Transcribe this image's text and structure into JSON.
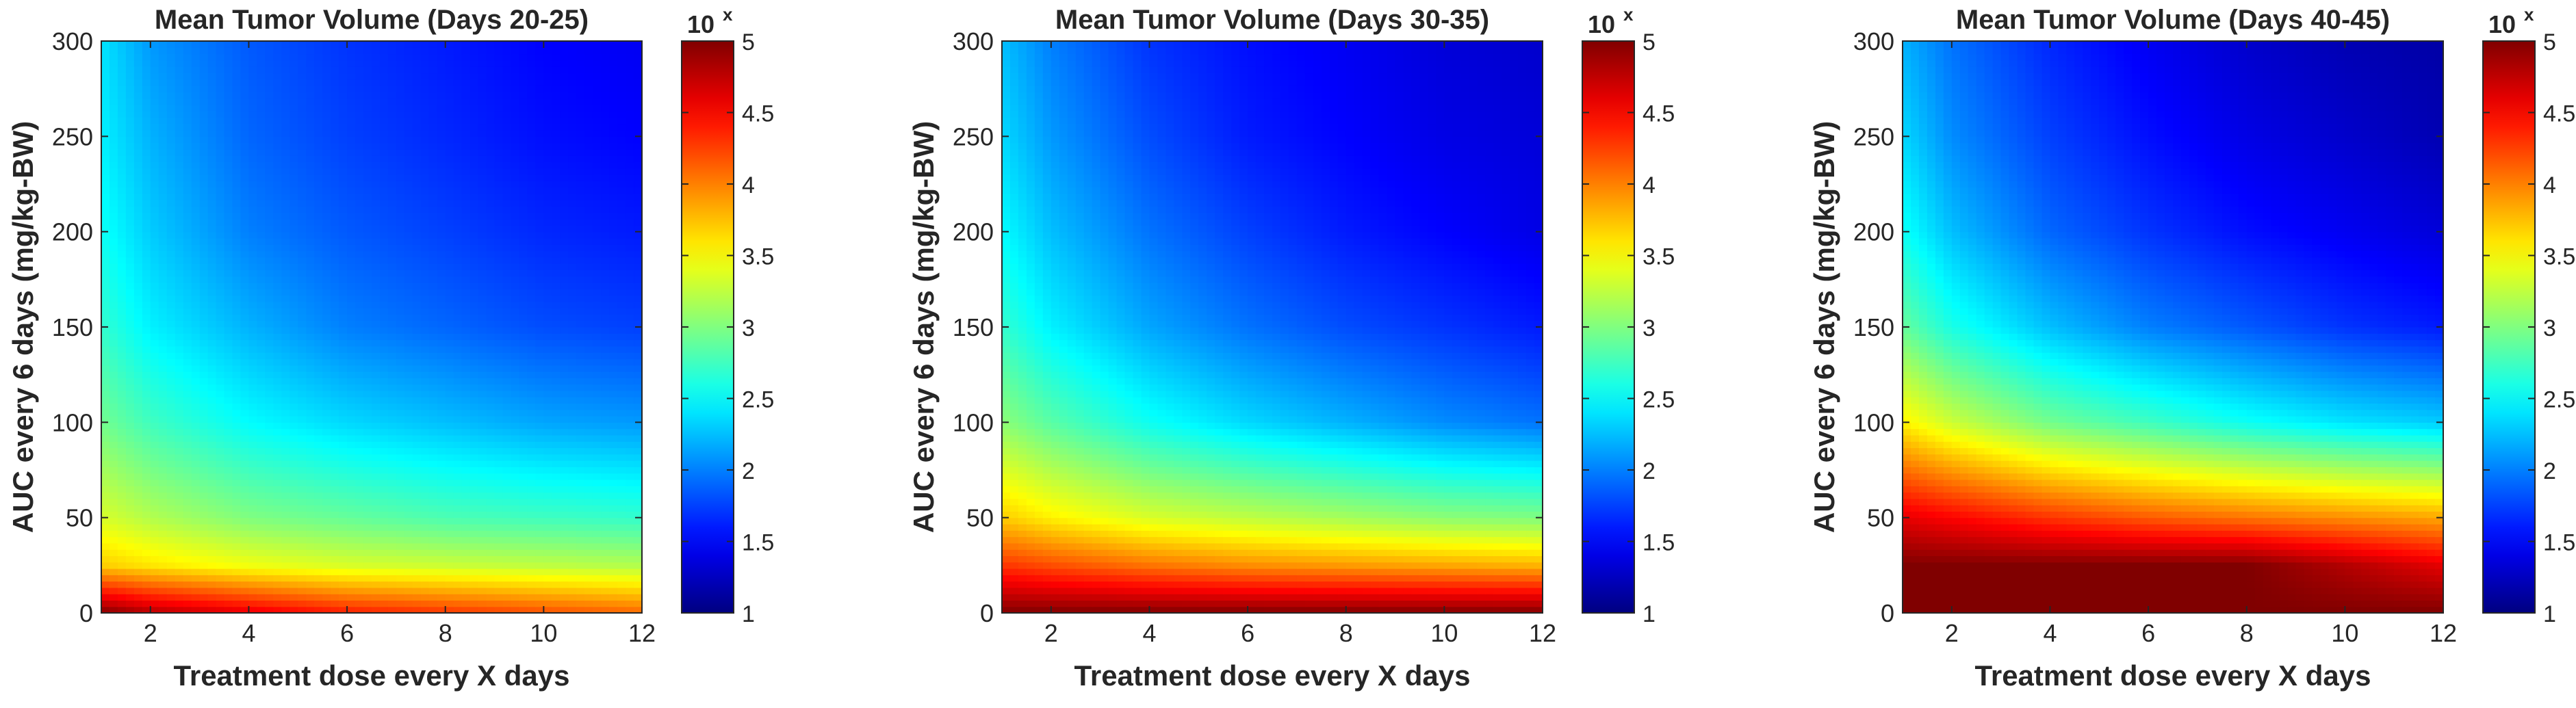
{
  "figure": {
    "panels": 3
  },
  "colormap": {
    "name": "jet"
  },
  "chart_data": [
    {
      "type": "heatmap",
      "title": "Mean Tumor Volume (Days 20-25)",
      "xlabel": "Treatment dose every X days",
      "ylabel": "AUC every 6 days (mg/kg-BW)",
      "xlim": [
        1,
        12
      ],
      "ylim": [
        0,
        300
      ],
      "xticks": [
        2,
        4,
        6,
        8,
        10,
        12
      ],
      "yticks": [
        0,
        50,
        100,
        150,
        200,
        250,
        300
      ],
      "colorbar": {
        "label": "10",
        "label_superscript": "x",
        "range": [
          1,
          5
        ],
        "ticks": [
          1,
          1.5,
          2,
          2.5,
          3,
          3.5,
          4,
          4.5,
          5
        ],
        "tick_labels": [
          "1",
          "1.5",
          "2",
          "2.5",
          "3",
          "3.5",
          "4",
          "4.5",
          "5"
        ]
      },
      "surface_samples": {
        "x": [
          1,
          2,
          4,
          6,
          8,
          10,
          12
        ],
        "y": [
          0,
          25,
          50,
          100,
          150,
          200,
          250,
          300
        ],
        "z_log10": [
          [
            5.0,
            4.8,
            4.6,
            4.4,
            4.3,
            4.2,
            4.1
          ],
          [
            3.7,
            3.6,
            3.45,
            3.35,
            3.3,
            3.25,
            3.2
          ],
          [
            3.35,
            3.2,
            3.0,
            2.9,
            2.8,
            2.75,
            2.7
          ],
          [
            2.95,
            2.75,
            2.5,
            2.35,
            2.25,
            2.15,
            2.1
          ],
          [
            2.7,
            2.45,
            2.2,
            2.0,
            1.9,
            1.8,
            1.75
          ],
          [
            2.55,
            2.3,
            2.0,
            1.85,
            1.75,
            1.65,
            1.6
          ],
          [
            2.45,
            2.2,
            1.9,
            1.75,
            1.65,
            1.55,
            1.5
          ],
          [
            2.4,
            2.1,
            1.85,
            1.7,
            1.6,
            1.5,
            1.45
          ]
        ]
      }
    },
    {
      "type": "heatmap",
      "title": "Mean Tumor Volume (Days 30-35)",
      "xlabel": "Treatment dose every X days",
      "ylabel": "AUC every 6 days (mg/kg-BW)",
      "xlim": [
        1,
        12
      ],
      "ylim": [
        0,
        300
      ],
      "xticks": [
        2,
        4,
        6,
        8,
        10,
        12
      ],
      "yticks": [
        0,
        50,
        100,
        150,
        200,
        250,
        300
      ],
      "colorbar": {
        "label": "10",
        "label_superscript": "x",
        "range": [
          1,
          5
        ],
        "ticks": [
          1,
          1.5,
          2,
          2.5,
          3,
          3.5,
          4,
          4.5,
          5
        ],
        "tick_labels": [
          "1",
          "1.5",
          "2",
          "2.5",
          "3",
          "3.5",
          "4",
          "4.5",
          "5"
        ]
      },
      "surface_samples": {
        "x": [
          1,
          2,
          4,
          6,
          8,
          10,
          12
        ],
        "y": [
          0,
          25,
          50,
          100,
          150,
          200,
          250,
          300
        ],
        "z_log10": [
          [
            5.0,
            5.0,
            5.0,
            5.0,
            5.0,
            5.0,
            5.0
          ],
          [
            4.3,
            4.2,
            4.05,
            3.95,
            3.9,
            3.85,
            3.8
          ],
          [
            3.7,
            3.55,
            3.35,
            3.25,
            3.15,
            3.05,
            3.0
          ],
          [
            3.05,
            2.85,
            2.55,
            2.35,
            2.2,
            2.05,
            1.95
          ],
          [
            2.7,
            2.45,
            2.15,
            1.95,
            1.8,
            1.7,
            1.6
          ],
          [
            2.5,
            2.25,
            1.95,
            1.75,
            1.6,
            1.5,
            1.4
          ],
          [
            2.35,
            2.1,
            1.8,
            1.6,
            1.5,
            1.4,
            1.35
          ],
          [
            2.25,
            2.0,
            1.7,
            1.55,
            1.45,
            1.35,
            1.3
          ]
        ]
      }
    },
    {
      "type": "heatmap",
      "title": "Mean Tumor Volume (Days 40-45)",
      "xlabel": "Treatment dose every X days",
      "ylabel": "AUC every 6 days (mg/kg-BW)",
      "xlim": [
        1,
        12
      ],
      "ylim": [
        0,
        300
      ],
      "xticks": [
        2,
        4,
        6,
        8,
        10,
        12
      ],
      "yticks": [
        0,
        50,
        100,
        150,
        200,
        250,
        300
      ],
      "colorbar": {
        "label": "10",
        "label_superscript": "x",
        "range": [
          1,
          5
        ],
        "ticks": [
          1,
          1.5,
          2,
          2.5,
          3,
          3.5,
          4,
          4.5,
          5
        ],
        "tick_labels": [
          "1",
          "1.5",
          "2",
          "2.5",
          "3",
          "3.5",
          "4",
          "4.5",
          "5"
        ]
      },
      "surface_samples": {
        "x": [
          1,
          2,
          4,
          6,
          8,
          10,
          12
        ],
        "y": [
          0,
          25,
          50,
          100,
          150,
          200,
          250,
          300
        ],
        "z_log10": [
          [
            5.0,
            5.0,
            5.0,
            5.0,
            5.0,
            5.0,
            5.0
          ],
          [
            5.0,
            5.0,
            5.0,
            5.0,
            5.0,
            4.8,
            4.6
          ],
          [
            4.6,
            4.5,
            4.3,
            4.15,
            4.05,
            3.95,
            3.85
          ],
          [
            3.55,
            3.3,
            2.95,
            2.75,
            2.55,
            2.4,
            2.3
          ],
          [
            2.9,
            2.6,
            2.25,
            2.0,
            1.85,
            1.7,
            1.6
          ],
          [
            2.55,
            2.25,
            1.9,
            1.7,
            1.55,
            1.45,
            1.35
          ],
          [
            2.35,
            2.05,
            1.75,
            1.55,
            1.4,
            1.3,
            1.2
          ],
          [
            2.2,
            1.95,
            1.65,
            1.45,
            1.3,
            1.2,
            1.15
          ]
        ]
      }
    }
  ]
}
